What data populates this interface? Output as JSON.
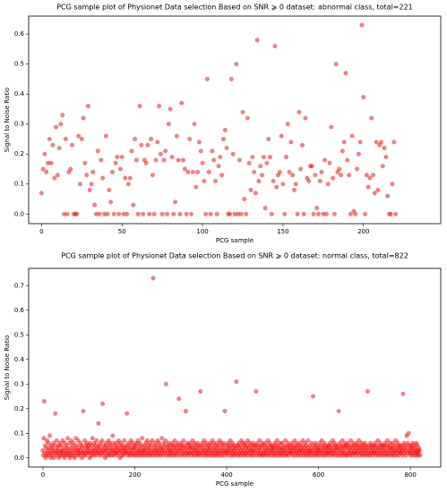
{
  "chart_data": [
    {
      "type": "scatter",
      "title": "PCG sample plot of Physionet Data selection Based on SNR ⩾ 0 dataset: abnormal class, total=221",
      "x_label": "PCG sample",
      "y_label": "Signal to Noise Ratio",
      "color": "#ff0000",
      "xlim": [
        -8,
        248
      ],
      "xticks": [
        0,
        50,
        100,
        150,
        200
      ],
      "ylim": [
        -0.032,
        0.66
      ],
      "yticks": [
        {
          "value": 0,
          "label": "0.0"
        },
        0.1,
        0.2,
        0.3,
        0.4,
        0.5,
        0.6
      ],
      "values": [
        0.07,
        0.15,
        0.2,
        0.14,
        0.17,
        0.25,
        0.17,
        0.23,
        0.12,
        0.29,
        0.13,
        0.22,
        0.3,
        0.33,
        0,
        0.25,
        0,
        0.14,
        0.15,
        0.23,
        0,
        0,
        0,
        0.26,
        0.1,
        0.25,
        0.32,
        0.17,
        0.13,
        0.36,
        0.08,
        0.1,
        0.14,
        0.03,
        0,
        0.21,
        0,
        0.18,
        0.12,
        0,
        0.26,
        0,
        0.08,
        0.04,
        0.14,
        0,
        0.17,
        0.19,
        0,
        0.15,
        0.19,
        0,
        0.12,
        0,
        0.1,
        0.12,
        0.21,
        0.03,
        0.25,
        0.18,
        0,
        0.36,
        0.23,
        0,
        0.18,
        0.17,
        0.23,
        0,
        0.25,
        0.13,
        0,
        0.18,
        0.24,
        0.36,
        0.2,
        0,
        0.18,
        0.21,
        0,
        0.3,
        0.35,
        0.19,
        0,
        0.04,
        0.26,
        0.18,
        0,
        0.37,
        0.18,
        0.15,
        0,
        0.14,
        0.25,
        0,
        0.14,
        0.3,
        0.09,
        0.14,
        0.24,
        0.21,
        0.17,
        0.11,
        0,
        0.45,
        0.14,
        0,
        0.21,
        0.18,
        0.11,
        0,
        0.16,
        0.19,
        0.13,
        0.25,
        0.28,
        0.22,
        0,
        0,
        0.45,
        0.2,
        0,
        0.5,
        0,
        0.18,
        0,
        0.34,
        0.05,
        0,
        0.32,
        0.17,
        0.08,
        0.19,
        0.14,
        0.07,
        0.58,
        0.11,
        0.16,
        0.13,
        0.19,
        0.02,
        0.17,
        0.25,
        0.19,
        0,
        0.11,
        0.56,
        0.09,
        0.13,
        0.14,
        0.26,
        0.1,
        0,
        0.19,
        0.3,
        0.14,
        0.24,
        0.13,
        0.08,
        0.1,
        0,
        0.34,
        0.15,
        0.23,
        0,
        0.32,
        0.12,
        0.11,
        0.16,
        0.16,
        0,
        0.13,
        0.02,
        0,
        0.11,
        0.14,
        0,
        0.18,
        0,
        0.1,
        0.17,
        0.29,
        0.12,
        0,
        0.5,
        0.14,
        0.15,
        0.13,
        0.21,
        0.24,
        0.47,
        0.18,
        0.13,
        0,
        0.26,
        0.01,
        0,
        0.15,
        0.2,
        0.24,
        0.63,
        0.39,
        0,
        0.13,
        0.09,
        0.12,
        0.32,
        0.13,
        0.07,
        0.24,
        0.08,
        0.23,
        0.24,
        0.16,
        0.22,
        0.19,
        0.06,
        0,
        0,
        0.1,
        0.24,
        0
      ]
    },
    {
      "type": "scatter",
      "title": "PCG sample plot of Physionet Data selection Based on SNR ⩾ 0 dataset: normal class, total=822",
      "x_label": "PCG sample",
      "y_label": "Signal to Noise Ratio",
      "color": "#ff0000",
      "xlim": [
        -31,
        866
      ],
      "xticks": [
        0,
        200,
        400,
        600,
        800
      ],
      "ylim": [
        -0.037,
        0.77
      ],
      "yticks": [
        {
          "value": 0,
          "label": "0.0"
        },
        0.1,
        0.2,
        0.3,
        0.4,
        0.5,
        0.6,
        0.7
      ],
      "values": [
        0.03,
        0.01,
        0.08,
        0.23,
        0.02,
        0.05,
        0,
        0.04,
        0.01,
        0.07,
        0.02,
        0.03,
        0.06,
        0.01,
        0.04,
        0.09,
        0.02,
        0,
        0.05,
        0.03,
        0.01,
        0.04,
        0.02,
        0.06,
        0,
        0.03,
        0.05,
        0.18,
        0.02,
        0.01,
        0.07,
        0.03,
        0.04,
        0.02,
        0.05,
        0,
        0.01,
        0.06,
        0.03,
        0.02,
        0.05,
        0.01,
        0.03,
        0.07,
        0.02,
        0.04,
        0.01,
        0,
        0.06,
        0.03,
        0.02,
        0.05,
        0.01,
        0.04,
        0.08,
        0.02,
        0.03,
        0.01,
        0.06,
        0,
        0.02,
        0.04,
        0.07,
        0.01,
        0.03,
        0.05,
        0.02,
        0.06,
        0.01,
        0,
        0.04,
        0.03,
        0.08,
        0.02,
        0.05,
        0.01,
        0.03,
        0.07,
        0.02,
        0.04,
        0.01,
        0.03,
        0.06,
        0.02,
        0.05,
        0,
        0.04,
        0.02,
        0.19,
        0.01,
        0.03,
        0.07,
        0.02,
        0.05,
        0.01,
        0.04,
        0.06,
        0.03,
        0.02,
        0.05,
        0.04,
        0.02,
        0,
        0.06,
        0.03,
        0.01,
        0.05,
        0.02,
        0.08,
        0.03,
        0.01,
        0.04,
        0.06,
        0.02,
        0.03,
        0.05,
        0.01,
        0.07,
        0.02,
        0.04,
        0.03,
        0.14,
        0.05,
        0.02,
        0.01,
        0.06,
        0.04,
        0.03,
        0.02,
        0.07,
        0.22,
        0.01,
        0.05,
        0.03,
        0.02,
        0.04,
        0,
        0.06,
        0.03,
        0.01,
        0.05,
        0.02,
        0.04,
        0.07,
        0.01,
        0.03,
        0.06,
        0.02,
        0.05,
        0.01,
        0.04,
        0.03,
        0.09,
        0.02,
        0.06,
        0.01,
        0.03,
        0.05,
        0.02,
        0.04,
        0.02,
        0.06,
        0.01,
        0.04,
        0.03,
        0.07,
        0.02,
        0.05,
        0,
        0.03,
        0.06,
        0.01,
        0.04,
        0.02,
        0.05,
        0.03,
        0.01,
        0.07,
        0.04,
        0.02,
        0.03,
        0.05,
        0.02,
        0.18,
        0.04,
        0.01,
        0.06,
        0.03,
        0.02,
        0.05,
        0.01,
        0.04,
        0.07,
        0.02,
        0.03,
        0.06,
        0.01,
        0.04,
        0.02,
        0.05,
        0.04,
        0.01,
        0.03,
        0.06,
        0.02,
        0.05,
        0.01,
        0.07,
        0.03,
        0.02,
        0.04,
        0.06,
        0.01,
        0.03,
        0.05,
        0.02,
        0.08,
        0.01,
        0.04,
        0.03,
        0.02,
        0.05,
        0.03,
        0.01,
        0.06,
        0.04,
        0.02,
        0.07,
        0.01,
        0.03,
        0.05,
        0.02,
        0.04,
        0.06,
        0.01,
        0.03,
        0.02,
        0.05,
        0.07,
        0.01,
        0.73,
        0.03,
        0.04,
        0.02,
        0.06,
        0.01,
        0.05,
        0.03,
        0.02,
        0.04,
        0.07,
        0.01,
        0.03,
        0.06,
        0.02,
        0.05,
        0.01,
        0.04,
        0.03,
        0.08,
        0.02,
        0.04,
        0.01,
        0.06,
        0.03,
        0.05,
        0.02,
        0.07,
        0.3,
        0.01,
        0.04,
        0.03,
        0.05,
        0.02,
        0.06,
        0.01,
        0.04,
        0.03,
        0.02,
        0.05,
        0.01,
        0.03,
        0.06,
        0.02,
        0.05,
        0.04,
        0.01,
        0.07,
        0.03,
        0.02,
        0.05,
        0.01,
        0.04,
        0.06,
        0.02,
        0.03,
        0.24,
        0.05,
        0.01,
        0.04,
        0.03,
        0.06,
        0.02,
        0.05,
        0.01,
        0.04,
        0.07,
        0.02,
        0.03,
        0.05,
        0.01,
        0.19,
        0.04,
        0.02,
        0.06,
        0.03,
        0.01,
        0.05,
        0.02,
        0.04,
        0.06,
        0.02,
        0.04,
        0.01,
        0.05,
        0.03,
        0.07,
        0.02,
        0.04,
        0.01,
        0.06,
        0.03,
        0.05,
        0.02,
        0.04,
        0.01,
        0.03,
        0.06,
        0.02,
        0.05,
        0.01,
        0.04,
        0.02,
        0.27,
        0.03,
        0.05,
        0.01,
        0.06,
        0.02,
        0.04,
        0.03,
        0.07,
        0.01,
        0.05,
        0.02,
        0.03,
        0.06,
        0.01,
        0.04,
        0.02,
        0.05,
        0.03,
        0.01,
        0.04,
        0.06,
        0.02,
        0.05,
        0.03,
        0.01,
        0.07,
        0.02,
        0.04,
        0.06,
        0.01,
        0.03,
        0.05,
        0.02,
        0.04,
        0.01,
        0.06,
        0.03,
        0.02,
        0.05,
        0.01,
        0.04,
        0.07,
        0.02,
        0.03,
        0.06,
        0.01,
        0.05,
        0.02,
        0.04,
        0.03,
        0.06,
        0.01,
        0.19,
        0.02,
        0.05,
        0.03,
        0.02,
        0.04,
        0.01,
        0.06,
        0.03,
        0.05,
        0.02,
        0.04,
        0.07,
        0.01,
        0.03,
        0.05,
        0.02,
        0.06,
        0.01,
        0.04,
        0.03,
        0.02,
        0.05,
        0.01,
        0.04,
        0.31,
        0.02,
        0.05,
        0.03,
        0.01,
        0.06,
        0.04,
        0.02,
        0.05,
        0.01,
        0.03,
        0.07,
        0.02,
        0.04,
        0.06,
        0.01,
        0.03,
        0.05,
        0.02,
        0.06,
        0.01,
        0.04,
        0.02,
        0.05,
        0.03,
        0.07,
        0.01,
        0.04,
        0.02,
        0.06,
        0.03,
        0.05,
        0.01,
        0.04,
        0.02,
        0.03,
        0.06,
        0.01,
        0.05,
        0.03,
        0.02,
        0.05,
        0.04,
        0.27,
        0.01,
        0.06,
        0.03,
        0.02,
        0.05,
        0.04,
        0.01,
        0.07,
        0.03,
        0.02,
        0.05,
        0.01,
        0.04,
        0.06,
        0.02,
        0.01,
        0.05,
        0.03,
        0.02,
        0.06,
        0.04,
        0.01,
        0.03,
        0.05,
        0.02,
        0.07,
        0.01,
        0.04,
        0.03,
        0.06,
        0.02,
        0.05,
        0.01,
        0.03,
        0.04,
        0.05,
        0.02,
        0.04,
        0.01,
        0.03,
        0.06,
        0.02,
        0.05,
        0.01,
        0.04,
        0.07,
        0.03,
        0.02,
        0.05,
        0.01,
        0.04,
        0.06,
        0.02,
        0.03,
        0.01,
        0.04,
        0.06,
        0.02,
        0.03,
        0.05,
        0.01,
        0.04,
        0.02,
        0.07,
        0.03,
        0.01,
        0.05,
        0.02,
        0.04,
        0.06,
        0.01,
        0.03,
        0.05,
        0.02,
        0.04,
        0.02,
        0.03,
        0.06,
        0.01,
        0.05,
        0.04,
        0.02,
        0.03,
        0.07,
        0.01,
        0.04,
        0.05,
        0.02,
        0.06,
        0.03,
        0.01,
        0.04,
        0.02,
        0.05,
        0.03,
        0.06,
        0.01,
        0.04,
        0.03,
        0.02,
        0.05,
        0.07,
        0.01,
        0.03,
        0.04,
        0.02,
        0.06,
        0.01,
        0.05,
        0.03,
        0.02,
        0.04,
        0.07,
        0.01,
        0.03,
        0.02,
        0.05,
        0.03,
        0.01,
        0.04,
        0.06,
        0.02,
        0.03,
        0.25,
        0.01,
        0.05,
        0.04,
        0.02,
        0.06,
        0.03,
        0.01,
        0.05,
        0.02,
        0.04,
        0.03,
        0.01,
        0.04,
        0.06,
        0.02,
        0.03,
        0.05,
        0.01,
        0.07,
        0.02,
        0.04,
        0.03,
        0.05,
        0.01,
        0.06,
        0.02,
        0.04,
        0.03,
        0.01,
        0.05,
        0.02,
        0.04,
        0.02,
        0.05,
        0.03,
        0.01,
        0.06,
        0.04,
        0.02,
        0.03,
        0.05,
        0.01,
        0.07,
        0.02,
        0.04,
        0.03,
        0.06,
        0.01,
        0.05,
        0.02,
        0.04,
        0.03,
        0.05,
        0.01,
        0.04,
        0.19,
        0.02,
        0.06,
        0.03,
        0.01,
        0.05,
        0.04,
        0.02,
        0.07,
        0.01,
        0.03,
        0.05,
        0.02,
        0.04,
        0.06,
        0.01,
        0.05,
        0.02,
        0.04,
        0.01,
        0.06,
        0.03,
        0.05,
        0.02,
        0.04,
        0.01,
        0.07,
        0.03,
        0.02,
        0.05,
        0.04,
        0.01,
        0.06,
        0.02,
        0.03,
        0.05,
        0.02,
        0.04,
        0.01,
        0.06,
        0.03,
        0.05,
        0.02,
        0.04,
        0.07,
        0.01,
        0.03,
        0.05,
        0.02,
        0.04,
        0.06,
        0.01,
        0.03,
        0.02,
        0.05,
        0.04,
        0.01,
        0.06,
        0.03,
        0.02,
        0.05,
        0.04,
        0.01,
        0.27,
        0.03,
        0.02,
        0.05,
        0.01,
        0.04,
        0.06,
        0.02,
        0.03,
        0.05,
        0.01,
        0.04,
        0.02,
        0.05,
        0.03,
        0.02,
        0.06,
        0.01,
        0.04,
        0.05,
        0.02,
        0.03,
        0.07,
        0.01,
        0.04,
        0.02,
        0.05,
        0.03,
        0.06,
        0.01,
        0.04,
        0.02,
        0.05,
        0.03,
        0.01,
        0.05,
        0.04,
        0.02,
        0.06,
        0.03,
        0.01,
        0.05,
        0.02,
        0.07,
        0.04,
        0.01,
        0.03,
        0.05,
        0.02,
        0.06,
        0.04,
        0.01,
        0.03,
        0.04,
        0.02,
        0.06,
        0.01,
        0.05,
        0.03,
        0.02,
        0.04,
        0.07,
        0.01,
        0.03,
        0.05,
        0.02,
        0.06,
        0.04,
        0.01,
        0.03,
        0.05,
        0.02,
        0.04,
        0.02,
        0.05,
        0.03,
        0.01,
        0.26,
        0.04,
        0.06,
        0.02,
        0.03,
        0.05,
        0.01,
        0.04,
        0.09,
        0.02,
        0.06,
        0.03,
        0.1,
        0.05,
        0.02,
        0.04,
        0.01,
        0.03,
        0.05,
        0.02,
        0.04,
        0.06,
        0.01,
        0.03,
        0.05,
        0.02,
        0.04,
        0.01,
        0.03,
        0.06,
        0.02,
        0.05,
        0.01,
        0.03,
        0.02,
        0.04,
        0.03,
        0.01
      ]
    }
  ]
}
